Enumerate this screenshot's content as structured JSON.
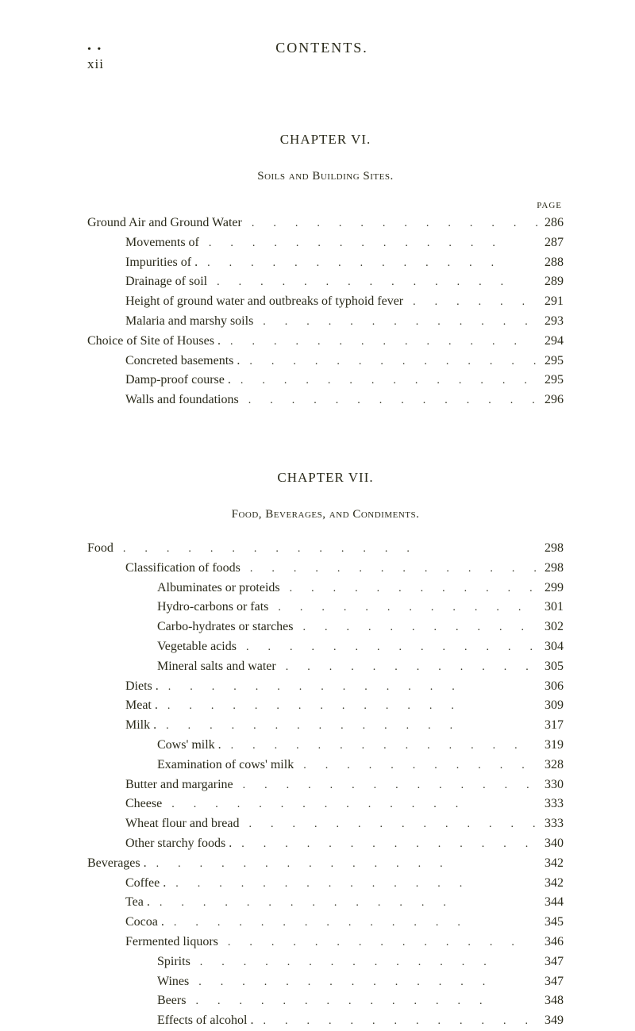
{
  "header": {
    "page_roman": "xii",
    "running_head": "CONTENTS."
  },
  "chapter6": {
    "chapter_label": "CHAPTER VI.",
    "section_label": "Soils and Building Sites.",
    "page_col_label": "PAGE",
    "entries": [
      {
        "indent": 0,
        "label": "Ground Air and Ground Water",
        "page": "286"
      },
      {
        "indent": 1,
        "label": "Movements of",
        "page": "287"
      },
      {
        "indent": 1,
        "label": "Impurities of .",
        "page": "288"
      },
      {
        "indent": 1,
        "label": "Drainage of soil",
        "page": "289"
      },
      {
        "indent": 1,
        "label": "Height of ground water and outbreaks of typhoid fever",
        "page": "291"
      },
      {
        "indent": 1,
        "label": "Malaria and marshy soils",
        "page": "293"
      },
      {
        "indent": 0,
        "label": "Choice of Site of Houses .",
        "page": "294"
      },
      {
        "indent": 1,
        "label": "Concreted basements .",
        "page": "295"
      },
      {
        "indent": 1,
        "label": "Damp-proof course .",
        "page": "295"
      },
      {
        "indent": 1,
        "label": "Walls and foundations",
        "page": "296"
      }
    ]
  },
  "chapter7": {
    "chapter_label": "CHAPTER VII.",
    "section_label": "Food, Beverages, and Condiments.",
    "entries": [
      {
        "indent": 0,
        "label": "Food",
        "page": "298"
      },
      {
        "indent": 1,
        "label": "Classification of foods",
        "page": "298"
      },
      {
        "indent": 2,
        "label": "Albuminates or proteids",
        "page": "299"
      },
      {
        "indent": 2,
        "label": "Hydro-carbons or fats",
        "page": "301"
      },
      {
        "indent": 2,
        "label": "Carbo-hydrates or starches",
        "page": "302"
      },
      {
        "indent": 2,
        "label": "Vegetable acids",
        "page": "304"
      },
      {
        "indent": 2,
        "label": "Mineral salts and water",
        "page": "305"
      },
      {
        "indent": 1,
        "label": "Diets .",
        "page": "306"
      },
      {
        "indent": 1,
        "label": "Meat .",
        "page": "309"
      },
      {
        "indent": 1,
        "label": "Milk .",
        "page": "317"
      },
      {
        "indent": 2,
        "label": "Cows' milk .",
        "page": "319"
      },
      {
        "indent": 2,
        "label": "Examination of cows' milk",
        "page": "328"
      },
      {
        "indent": 1,
        "label": "Butter and margarine",
        "page": "330"
      },
      {
        "indent": 1,
        "label": "Cheese",
        "page": "333"
      },
      {
        "indent": 1,
        "label": "Wheat flour and bread",
        "page": "333"
      },
      {
        "indent": 1,
        "label": "Other starchy foods .",
        "page": "340"
      },
      {
        "indent": 0,
        "label": "Beverages .",
        "page": "342"
      },
      {
        "indent": 1,
        "label": "Coffee .",
        "page": "342"
      },
      {
        "indent": 1,
        "label": "Tea .",
        "page": "344"
      },
      {
        "indent": 1,
        "label": "Cocoa .",
        "page": "345"
      },
      {
        "indent": 1,
        "label": "Fermented liquors",
        "page": "346"
      },
      {
        "indent": 2,
        "label": "Spirits",
        "page": "347"
      },
      {
        "indent": 2,
        "label": "Wines",
        "page": "347"
      },
      {
        "indent": 2,
        "label": "Beers",
        "page": "348"
      },
      {
        "indent": 2,
        "label": "Effects of alcohol .",
        "page": "349"
      }
    ]
  },
  "leader_dots": ".............."
}
